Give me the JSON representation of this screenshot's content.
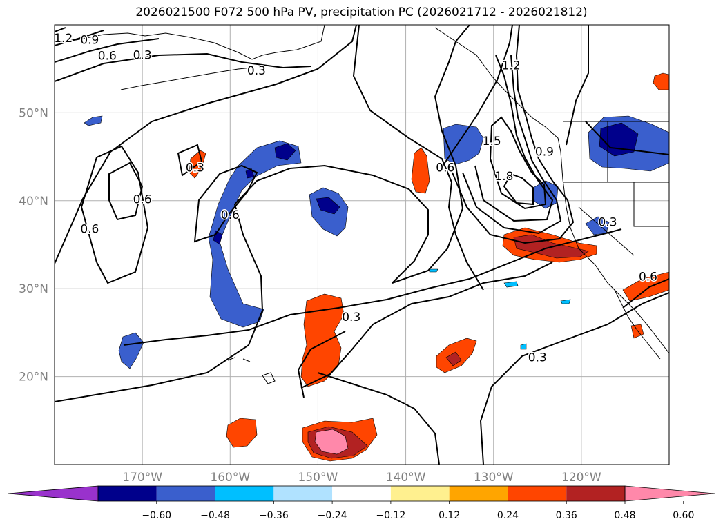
{
  "title": "2026021500 F072 500 hPa PV, precipitation PC (2026021712 - 2026021812)",
  "lon_ticks": [
    {
      "lon": -170,
      "label": "170°W"
    },
    {
      "lon": -160,
      "label": "160°W"
    },
    {
      "lon": -150,
      "label": "150°W"
    },
    {
      "lon": -140,
      "label": "140°W"
    },
    {
      "lon": -130,
      "label": "130°W"
    },
    {
      "lon": -120,
      "label": "120°W"
    }
  ],
  "lat_ticks": [
    {
      "lat": 50,
      "label": "50°N"
    },
    {
      "lat": 40,
      "label": "40°N"
    },
    {
      "lat": 30,
      "label": "30°N"
    },
    {
      "lat": 20,
      "label": "20°N"
    }
  ],
  "contour_labels": [
    {
      "text": "1.2",
      "lon": -179,
      "lat": 58.5
    },
    {
      "text": "0.9",
      "lon": -176,
      "lat": 58.3
    },
    {
      "text": "0.6",
      "lon": -174,
      "lat": 56.5
    },
    {
      "text": "0.3",
      "lon": -170,
      "lat": 56.6
    },
    {
      "text": "0.3",
      "lon": -157,
      "lat": 54.8
    },
    {
      "text": "0.3",
      "lon": -164,
      "lat": 43.8
    },
    {
      "text": "0.6",
      "lon": -170,
      "lat": 40.2
    },
    {
      "text": "0.6",
      "lon": -176,
      "lat": 36.8
    },
    {
      "text": "0.6",
      "lon": -160,
      "lat": 38.4
    },
    {
      "text": "0.6",
      "lon": -135.5,
      "lat": 43.8
    },
    {
      "text": "1.5",
      "lon": -130.2,
      "lat": 46.8
    },
    {
      "text": "1.2",
      "lon": -128,
      "lat": 55.4
    },
    {
      "text": "1.8",
      "lon": -128.8,
      "lat": 42.8
    },
    {
      "text": "0.9",
      "lon": -124.2,
      "lat": 45.6
    },
    {
      "text": "0.3",
      "lon": -117,
      "lat": 37.6
    },
    {
      "text": "0.6",
      "lon": -112.4,
      "lat": 31.4
    },
    {
      "text": "0.3",
      "lon": -146.2,
      "lat": 26.8
    },
    {
      "text": "0.3",
      "lon": -125,
      "lat": 22.2
    }
  ],
  "colorbar": {
    "colors": [
      "#9932cc",
      "#00008b",
      "#3a5fcd",
      "#00bfff",
      "#b0e2ff",
      "#ffffff",
      "#fff08f",
      "#ffa500",
      "#ff4500",
      "#b22222",
      "#ff88aa"
    ],
    "labels": [
      "−0.60",
      "−0.48",
      "−0.36",
      "−0.24",
      "−0.12",
      "0.12",
      "0.24",
      "0.36",
      "0.48",
      "0.60"
    ]
  }
}
